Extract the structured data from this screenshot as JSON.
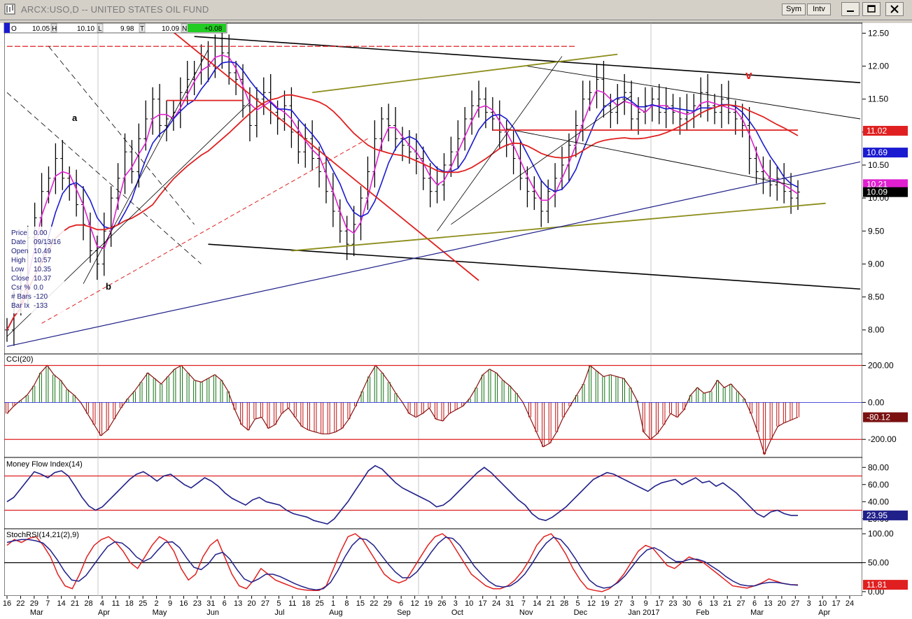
{
  "window": {
    "title": "ARCX:USO,D -- UNITED STATES OIL FUND",
    "sym_button": "Sym",
    "intv_button": "Intv",
    "minimize_icon": "minimize-icon",
    "maximize_icon": "maximize-icon",
    "close_icon": "close-icon"
  },
  "ohlc_bar": {
    "o_label": "O",
    "o_value": "10.05",
    "h_label": "H",
    "h_value": "10.10",
    "l_label": "L",
    "l_value": "9.98",
    "t_label": "T",
    "t_value": "10.09",
    "n_label": "N",
    "n_value": "+0.08",
    "n_color": "#22cc22"
  },
  "data_window": [
    {
      "label": "Price",
      "value": "0.00"
    },
    {
      "label": "Date",
      "value": "09/13/16"
    },
    {
      "label": "Open",
      "value": "10.49"
    },
    {
      "label": "High",
      "value": "10.57"
    },
    {
      "label": "Low",
      "value": "10.35"
    },
    {
      "label": "Close",
      "value": "10.37"
    },
    {
      "label": "Csr %",
      "value": "0.0"
    },
    {
      "label": "# Bars",
      "value": "-120"
    },
    {
      "label": "Bar Ix",
      "value": "-133"
    }
  ],
  "annotations": {
    "a": "a",
    "b": "b",
    "v": "v"
  },
  "colors": {
    "ma_red": "#e02020",
    "ma_blue": "#1a1ad0",
    "ma_magenta": "#e020d0",
    "olive": "#8c8c1a",
    "black": "#000000",
    "navy": "#20208a",
    "cci_green": "#107010",
    "cci_red": "#c01010"
  },
  "chart_data": [
    {
      "panel": "price",
      "type": "line",
      "title": "ARCX:USO,D -- UNITED STATES OIL FUND",
      "y_ticks": [
        "12.50",
        "12.00",
        "11.50",
        "11.00",
        "10.50",
        "10.00",
        "9.50",
        "9.00",
        "8.50",
        "8.00"
      ],
      "ylim": [
        7.7,
        12.6
      ],
      "price_labels": [
        {
          "value": "11.02",
          "color": "#e02020"
        },
        {
          "value": "10.69",
          "color": "#1a1ad0"
        },
        {
          "value": "10.21",
          "color": "#e020d0"
        },
        {
          "value": "10.09",
          "color": "#000000"
        }
      ],
      "close_series": [
        8.0,
        8.4,
        8.6,
        9.4,
        9.7,
        10.1,
        10.3,
        10.6,
        10.3,
        10.2,
        9.9,
        9.6,
        9.2,
        9.0,
        9.5,
        10.0,
        10.3,
        10.7,
        10.4,
        10.9,
        11.2,
        11.5,
        11.1,
        11.2,
        11.3,
        11.6,
        11.8,
        11.9,
        12.1,
        12.0,
        12.3,
        12.2,
        11.9,
        11.8,
        11.4,
        11.1,
        11.5,
        11.6,
        11.3,
        11.2,
        11.4,
        11.0,
        10.7,
        10.9,
        10.6,
        10.4,
        10.1,
        9.8,
        9.5,
        9.3,
        9.6,
        10.0,
        10.4,
        10.9,
        11.2,
        11.1,
        10.9,
        10.8,
        10.7,
        10.6,
        10.3,
        10.1,
        10.2,
        10.5,
        10.7,
        10.9,
        11.2,
        11.4,
        11.5,
        11.3,
        11.2,
        11.0,
        10.8,
        10.6,
        10.3,
        10.1,
        10.0,
        9.8,
        10.1,
        10.3,
        10.5,
        10.8,
        11.1,
        11.5,
        11.6,
        11.8,
        11.4,
        11.3,
        11.5,
        11.6,
        11.2,
        11.3,
        11.4,
        11.5,
        11.3,
        11.4,
        11.3,
        11.2,
        11.3,
        11.4,
        11.6,
        11.4,
        11.3,
        11.5,
        11.3,
        11.2,
        11.1,
        10.6,
        10.4,
        10.3,
        10.2,
        10.3,
        10.1,
        10.0,
        10.09
      ],
      "ma_labels": [
        "red MA",
        "blue MA",
        "magenta MA"
      ]
    },
    {
      "panel": "cci",
      "type": "bar",
      "title": "CCI(20)",
      "y_ticks": [
        "200.00",
        "0.00",
        "-200.00"
      ],
      "ylim": [
        -290,
        255
      ],
      "last_label": "-80.12",
      "values": [
        -60,
        -20,
        10,
        40,
        90,
        160,
        200,
        150,
        120,
        70,
        40,
        0,
        -60,
        -120,
        -180,
        -150,
        -90,
        -30,
        20,
        60,
        110,
        160,
        130,
        100,
        140,
        180,
        200,
        160,
        120,
        110,
        130,
        150,
        120,
        60,
        -40,
        -120,
        -150,
        -90,
        -80,
        -140,
        -120,
        -60,
        -30,
        -80,
        -130,
        -150,
        -160,
        -170,
        -170,
        -160,
        -140,
        -90,
        -20,
        60,
        140,
        200,
        160,
        110,
        50,
        0,
        -60,
        -80,
        -60,
        -30,
        -90,
        -100,
        -60,
        -40,
        -20,
        20,
        80,
        150,
        180,
        160,
        120,
        90,
        50,
        0,
        -80,
        -160,
        -240,
        -220,
        -160,
        -80,
        -20,
        40,
        100,
        200,
        170,
        140,
        150,
        140,
        130,
        80,
        10,
        -160,
        -200,
        -170,
        -120,
        -60,
        -80,
        -40,
        40,
        80,
        50,
        60,
        120,
        80,
        100,
        60,
        20,
        -60,
        -160,
        -280,
        -200,
        -130,
        -110,
        -95,
        -80
      ],
      "hlines": [
        200,
        -200
      ]
    },
    {
      "panel": "mfi",
      "type": "line",
      "title": "Money Flow Index(14)",
      "y_ticks": [
        "80.00",
        "60.00",
        "40.00",
        "20.00"
      ],
      "ylim": [
        10,
        90
      ],
      "last_label": "23.95",
      "values": [
        40,
        45,
        55,
        65,
        75,
        72,
        68,
        74,
        76,
        70,
        58,
        45,
        35,
        30,
        34,
        42,
        50,
        58,
        66,
        72,
        75,
        70,
        64,
        70,
        72,
        66,
        60,
        56,
        62,
        68,
        64,
        58,
        50,
        44,
        40,
        36,
        42,
        45,
        40,
        38,
        36,
        30,
        26,
        24,
        22,
        18,
        16,
        14,
        20,
        30,
        40,
        52,
        64,
        76,
        82,
        78,
        70,
        62,
        56,
        52,
        48,
        44,
        40,
        34,
        36,
        42,
        50,
        58,
        66,
        74,
        80,
        74,
        66,
        58,
        50,
        42,
        36,
        26,
        20,
        18,
        22,
        28,
        34,
        42,
        50,
        58,
        66,
        70,
        74,
        72,
        68,
        64,
        60,
        56,
        52,
        58,
        62,
        64,
        66,
        60,
        64,
        68,
        62,
        64,
        58,
        62,
        56,
        50,
        42,
        34,
        26,
        22,
        28,
        30,
        26,
        24,
        23.95
      ],
      "hlines": [
        70,
        30
      ]
    },
    {
      "panel": "stochrsi",
      "type": "line",
      "title": "StochRSI(14,21(2),9)",
      "y_ticks": [
        "100.00",
        "50.00",
        "0.00"
      ],
      "ylim": [
        -5,
        105
      ],
      "last_label": "11.81",
      "series": [
        {
          "name": "",
          "values": [
            80,
            90,
            85,
            92,
            95,
            80,
            60,
            30,
            10,
            5,
            30,
            60,
            80,
            90,
            95,
            85,
            70,
            50,
            40,
            60,
            80,
            95,
            88,
            70,
            40,
            20,
            30,
            60,
            80,
            90,
            60,
            30,
            10,
            5,
            20,
            40,
            30,
            20,
            15,
            10,
            5,
            3,
            2,
            2,
            10,
            40,
            70,
            95,
            100,
            90,
            70,
            50,
            30,
            20,
            15,
            20,
            40,
            60,
            80,
            95,
            100,
            90,
            70,
            50,
            30,
            20,
            10,
            5,
            5,
            10,
            20,
            35,
            55,
            80,
            95,
            100,
            85,
            65,
            40,
            20,
            5,
            2,
            0,
            5,
            15,
            30,
            50,
            70,
            80,
            75,
            60,
            45,
            40,
            50,
            60,
            55,
            50,
            40,
            30,
            20,
            10,
            8,
            6,
            10,
            15,
            22,
            18,
            14,
            12,
            11.81
          ]
        },
        {
          "name": "",
          "values": [
            85,
            88,
            90,
            90,
            88,
            84,
            72,
            55,
            35,
            20,
            18,
            28,
            45,
            62,
            78,
            86,
            84,
            74,
            60,
            52,
            58,
            72,
            85,
            86,
            76,
            58,
            42,
            38,
            48,
            64,
            68,
            56,
            38,
            22,
            16,
            22,
            30,
            30,
            26,
            20,
            14,
            9,
            5,
            3,
            5,
            16,
            36,
            60,
            80,
            92,
            90,
            80,
            64,
            48,
            34,
            24,
            24,
            34,
            50,
            68,
            84,
            94,
            92,
            80,
            62,
            44,
            30,
            18,
            10,
            8,
            10,
            18,
            30,
            48,
            68,
            84,
            94,
            90,
            76,
            58,
            38,
            20,
            10,
            6,
            8,
            16,
            28,
            44,
            60,
            72,
            76,
            70,
            60,
            52,
            52,
            56,
            56,
            52,
            44,
            36,
            26,
            18,
            12,
            10,
            10,
            14,
            16,
            16,
            14,
            12,
            11
          ]
        }
      ],
      "hlines": [
        50
      ]
    }
  ],
  "x_axis": {
    "day_ticks": [
      "16",
      "22",
      "29",
      "7",
      "14",
      "21",
      "28",
      "4",
      "11",
      "18",
      "25",
      "2",
      "9",
      "16",
      "23",
      "31",
      "6",
      "13",
      "20",
      "27",
      "5",
      "11",
      "18",
      "25",
      "1",
      "8",
      "15",
      "22",
      "29",
      "6",
      "12",
      "19",
      "26",
      "3",
      "10",
      "17",
      "24",
      "31",
      "7",
      "14",
      "21",
      "28",
      "5",
      "12",
      "19",
      "27",
      "3",
      "9",
      "17",
      "23",
      "30",
      "6",
      "13",
      "21",
      "27",
      "6",
      "13",
      "20",
      "27",
      "3",
      "10",
      "17",
      "24"
    ],
    "month_ticks": [
      "Mar",
      "Apr",
      "May",
      "Jun",
      "Jul",
      "Aug",
      "Sep",
      "Oct",
      "Nov",
      "Dec",
      "Jan 2017",
      "Feb",
      "Mar",
      "Apr"
    ]
  }
}
